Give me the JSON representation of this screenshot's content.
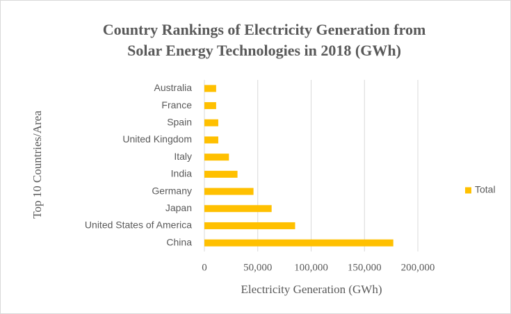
{
  "chart_data": {
    "type": "bar",
    "orientation": "horizontal",
    "title": [
      "Country Rankings of Electricity Generation from",
      "Solar Energy Technologies in 2018 (GWh)"
    ],
    "x_label": "Electricity Generation (GWh)",
    "y_label": "Top 10 Countries/Area",
    "categories": [
      "China",
      "United States of America",
      "Japan",
      "Germany",
      "India",
      "Italy",
      "United Kingdom",
      "Spain",
      "France",
      "Australia"
    ],
    "series": [
      {
        "name": "Total",
        "color": "#FFC000",
        "values": [
          177000,
          85000,
          63000,
          46000,
          31000,
          23000,
          13000,
          13000,
          11000,
          11000
        ]
      }
    ],
    "xlim": [
      0,
      200000
    ],
    "xticks": [
      0,
      {
        "value": 50000,
        "label": "50,000"
      },
      {
        "value": 100000,
        "label": "100,000"
      },
      {
        "value": 150000,
        "label": "150,000"
      },
      {
        "value": 200000,
        "label": "200,000"
      }
    ],
    "grid": true,
    "legend": "right"
  }
}
